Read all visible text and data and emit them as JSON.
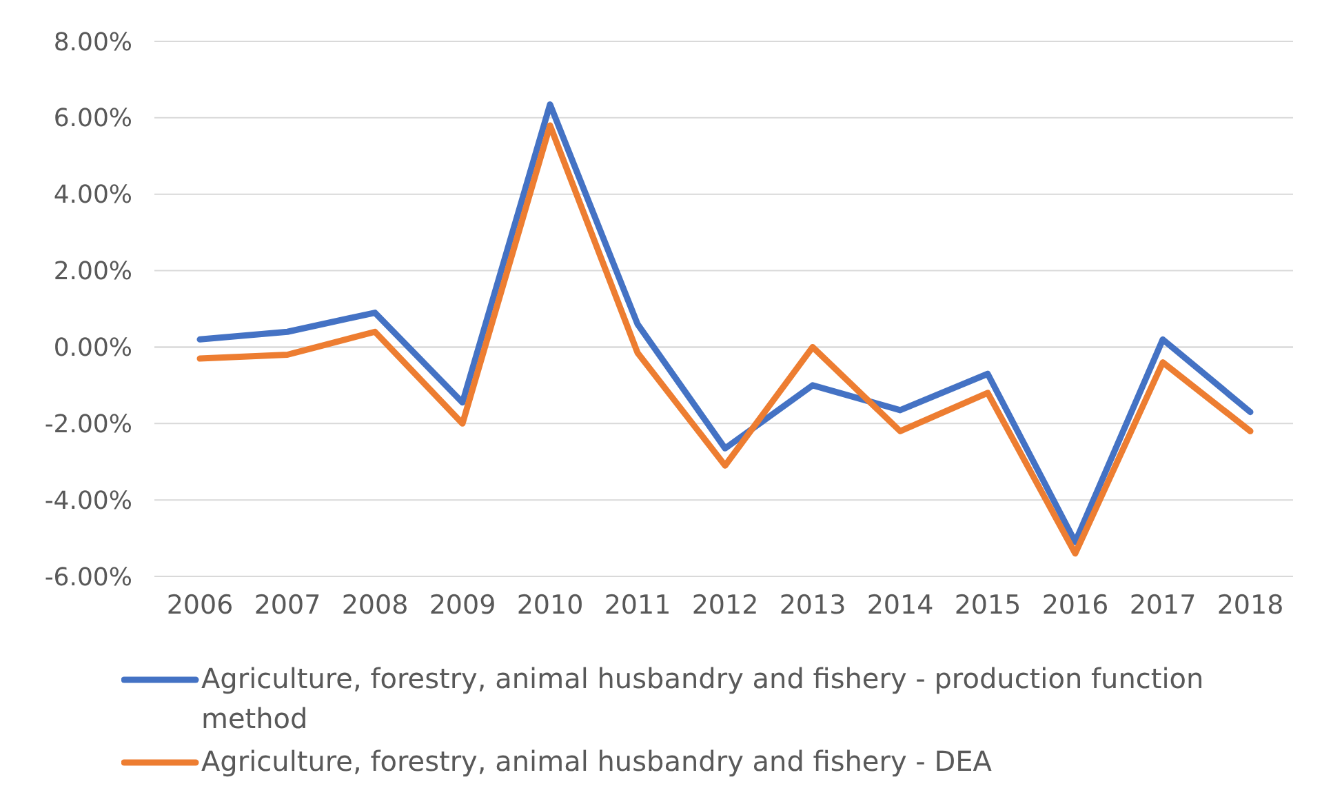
{
  "chart_data": {
    "type": "line",
    "categories": [
      "2006",
      "2007",
      "2008",
      "2009",
      "2010",
      "2011",
      "2012",
      "2013",
      "2014",
      "2015",
      "2016",
      "2017",
      "2018"
    ],
    "series": [
      {
        "name": "Agriculture, forestry, animal husbandry and fishery - production function method",
        "color": "#4472c4",
        "values": [
          0.2,
          0.4,
          0.9,
          -1.45,
          6.35,
          0.6,
          -2.65,
          -1.0,
          -1.65,
          -0.7,
          -5.1,
          0.2,
          -1.7
        ]
      },
      {
        "name": "Agriculture, forestry, animal husbandry and fishery - DEA",
        "color": "#ed7d31",
        "values": [
          -0.3,
          -0.2,
          0.4,
          -2.0,
          5.8,
          -0.15,
          -3.1,
          0.0,
          -2.2,
          -1.2,
          -5.4,
          -0.4,
          -2.2
        ]
      }
    ],
    "ylim": [
      -6,
      8
    ],
    "yticks": [
      {
        "value": 8,
        "label": "8.00%"
      },
      {
        "value": 6,
        "label": "6.00%"
      },
      {
        "value": 4,
        "label": "4.00%"
      },
      {
        "value": 2,
        "label": "2.00%"
      },
      {
        "value": 0,
        "label": "0.00%"
      },
      {
        "value": -2,
        "label": "-2.00%"
      },
      {
        "value": -4,
        "label": "-4.00%"
      },
      {
        "value": -6,
        "label": "-6.00%"
      }
    ],
    "grid": "y",
    "legend": "bottom",
    "marker": "none",
    "line_style": "solid"
  }
}
